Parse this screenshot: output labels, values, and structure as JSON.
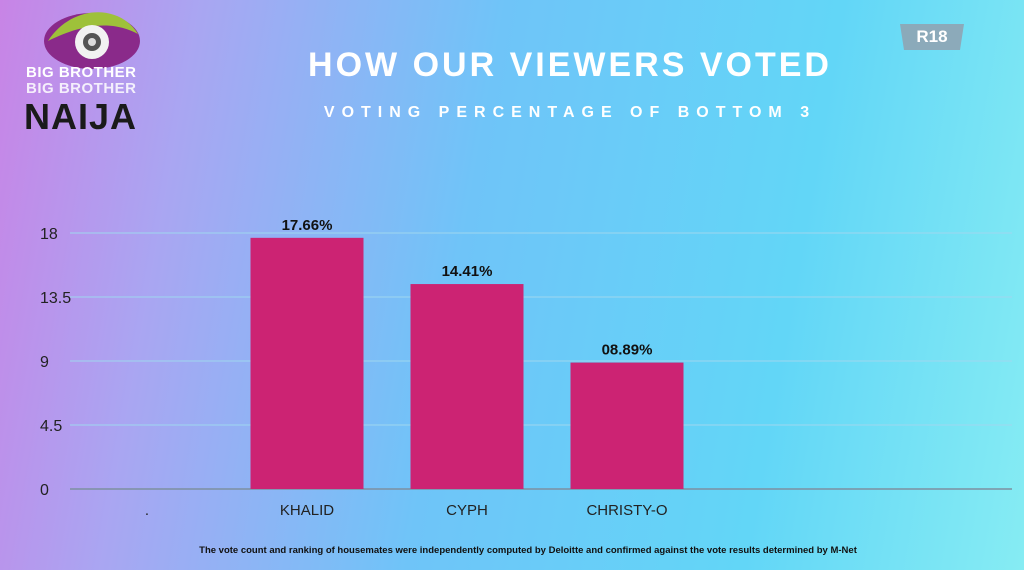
{
  "logo": {
    "line1": "BIG BROTHER",
    "line2": "BIG BROTHER",
    "line3": "NAIJA",
    "icon": "eye-logo-icon"
  },
  "badge": {
    "label": "R18"
  },
  "colors": {
    "bar": "#cc2373",
    "grid": "#9fd7ef",
    "axis": "#7d8fa0"
  },
  "footnote": "The vote count and ranking of housemates were independently computed by Deloitte and confirmed against the vote results determined by M-Net",
  "chart_data": {
    "type": "bar",
    "title": "HOW OUR VIEWERS VOTED",
    "subtitle": "VOTING PERCENTAGE OF BOTTOM 3",
    "categories": [
      ".",
      "KHALID",
      "CYPH",
      "CHRISTY-O"
    ],
    "values": [
      null,
      17.66,
      14.41,
      8.89
    ],
    "data_labels": [
      "",
      "17.66%",
      "14.41%",
      "08.89%"
    ],
    "y_ticks": [
      "0",
      "4.5",
      "9",
      "13.5",
      "18"
    ],
    "ylim": [
      0,
      18
    ],
    "grid": true,
    "legend": "none"
  }
}
